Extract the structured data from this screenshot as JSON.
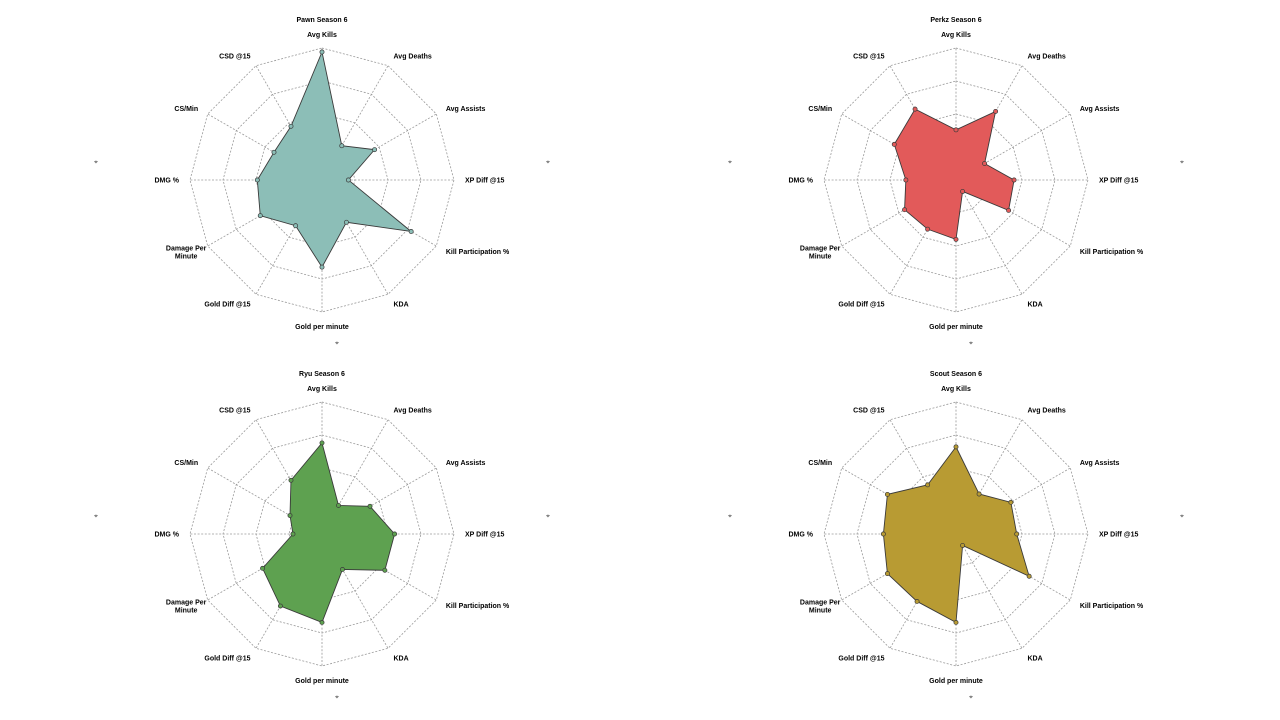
{
  "chart_data": [
    {
      "type": "radar",
      "title": "Pawn Season 6",
      "color": "#8cbeb7",
      "axes": [
        "Avg Kills",
        "Avg Deaths",
        "Avg Assists",
        "XP Diff @15",
        "Kill Participation %",
        "KDA",
        "Gold per minute",
        "Gold Diff @15",
        "Damage Per Minute",
        "DMG %",
        "CS/Min",
        "CSD @15"
      ],
      "values": [
        0.97,
        0.3,
        0.46,
        0.2,
        0.78,
        0.37,
        0.66,
        0.4,
        0.54,
        0.49,
        0.42,
        0.47
      ],
      "range": [
        0,
        1
      ],
      "rings": 4,
      "grid": true
    },
    {
      "type": "radar",
      "title": "Perkz Season 6",
      "color": "#e25a5a",
      "axes": [
        "Avg Kills",
        "Avg Deaths",
        "Avg Assists",
        "XP Diff @15",
        "Kill Participation %",
        "KDA",
        "Gold per minute",
        "Gold Diff @15",
        "Damage Per Minute",
        "DMG %",
        "CS/Min",
        "CSD @15"
      ],
      "values": [
        0.38,
        0.6,
        0.25,
        0.44,
        0.46,
        0.1,
        0.45,
        0.43,
        0.45,
        0.38,
        0.54,
        0.62
      ],
      "range": [
        0,
        1
      ],
      "rings": 4,
      "grid": true
    },
    {
      "type": "radar",
      "title": "Ryu Season 6",
      "color": "#5ea150",
      "axes": [
        "Avg Kills",
        "Avg Deaths",
        "Avg Assists",
        "XP Diff @15",
        "Kill Participation %",
        "KDA",
        "Gold per minute",
        "Gold Diff @15",
        "Damage Per Minute",
        "DMG %",
        "CS/Min",
        "CSD @15"
      ],
      "values": [
        0.69,
        0.25,
        0.42,
        0.55,
        0.55,
        0.31,
        0.67,
        0.63,
        0.52,
        0.22,
        0.28,
        0.47
      ],
      "range": [
        0,
        1
      ],
      "rings": 4,
      "grid": true
    },
    {
      "type": "radar",
      "title": "Scout Season 6",
      "color": "#b89b33",
      "axes": [
        "Avg Kills",
        "Avg Deaths",
        "Avg Assists",
        "XP Diff @15",
        "Kill Participation %",
        "KDA",
        "Gold per minute",
        "Gold Diff @15",
        "Damage Per Minute",
        "DMG %",
        "CS/Min",
        "CSD @15"
      ],
      "values": [
        0.66,
        0.35,
        0.48,
        0.46,
        0.64,
        0.1,
        0.67,
        0.59,
        0.6,
        0.55,
        0.6,
        0.43
      ],
      "range": [
        0,
        1
      ],
      "rings": 4,
      "grid": true
    }
  ],
  "pin_icon": "pin-icon"
}
